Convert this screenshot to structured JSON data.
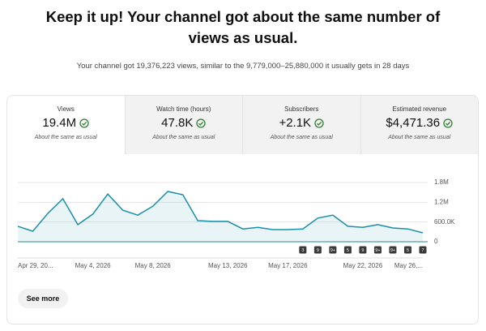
{
  "header": {
    "title": "Keep it up! Your channel got about the same number of views as usual.",
    "subtitle": "Your channel got 19,376,223 views, similar to the 9,779,000–25,880,000 it usually gets in 28 days"
  },
  "metrics": [
    {
      "label": "Views",
      "value": "19.4M",
      "note": "About the same as usual"
    },
    {
      "label": "Watch time (hours)",
      "value": "47.8K",
      "note": "About the same as usual"
    },
    {
      "label": "Subscribers",
      "value": "+2.1K",
      "note": "About the same as usual"
    },
    {
      "label": "Estimated revenue",
      "value": "$4,471.36",
      "note": "About the same as usual"
    }
  ],
  "chart_data": {
    "type": "area",
    "color": "#1a8fa8",
    "grid": true,
    "categories": [
      "Apr 29, 20...",
      null,
      null,
      null,
      null,
      "May 4, 2026",
      null,
      null,
      null,
      "May 8, 2026",
      null,
      null,
      null,
      null,
      "May 13, 2026",
      null,
      null,
      null,
      "May 17, 2026",
      null,
      null,
      null,
      null,
      "May 22, 2026",
      null,
      null,
      null,
      "May 26,..."
    ],
    "values": [
      470000,
      320000,
      860000,
      1310000,
      520000,
      840000,
      1450000,
      960000,
      810000,
      1080000,
      1530000,
      1430000,
      640000,
      620000,
      620000,
      390000,
      440000,
      370000,
      370000,
      390000,
      720000,
      810000,
      470000,
      440000,
      520000,
      420000,
      390000,
      270000
    ],
    "ylim": [
      0,
      1800000
    ],
    "yticks": [
      0,
      {
        "value": 600000,
        "label": "600.0K"
      },
      {
        "value": 1200000,
        "label": "1.2M"
      },
      {
        "value": 1800000,
        "label": "1.8M"
      }
    ],
    "badges": [
      null,
      null,
      null,
      null,
      null,
      null,
      null,
      null,
      null,
      null,
      null,
      null,
      null,
      null,
      null,
      null,
      null,
      null,
      null,
      "3",
      "9",
      "9+",
      "5",
      "9",
      "9+",
      "9+",
      "5",
      "7"
    ]
  },
  "see_more": "See more"
}
